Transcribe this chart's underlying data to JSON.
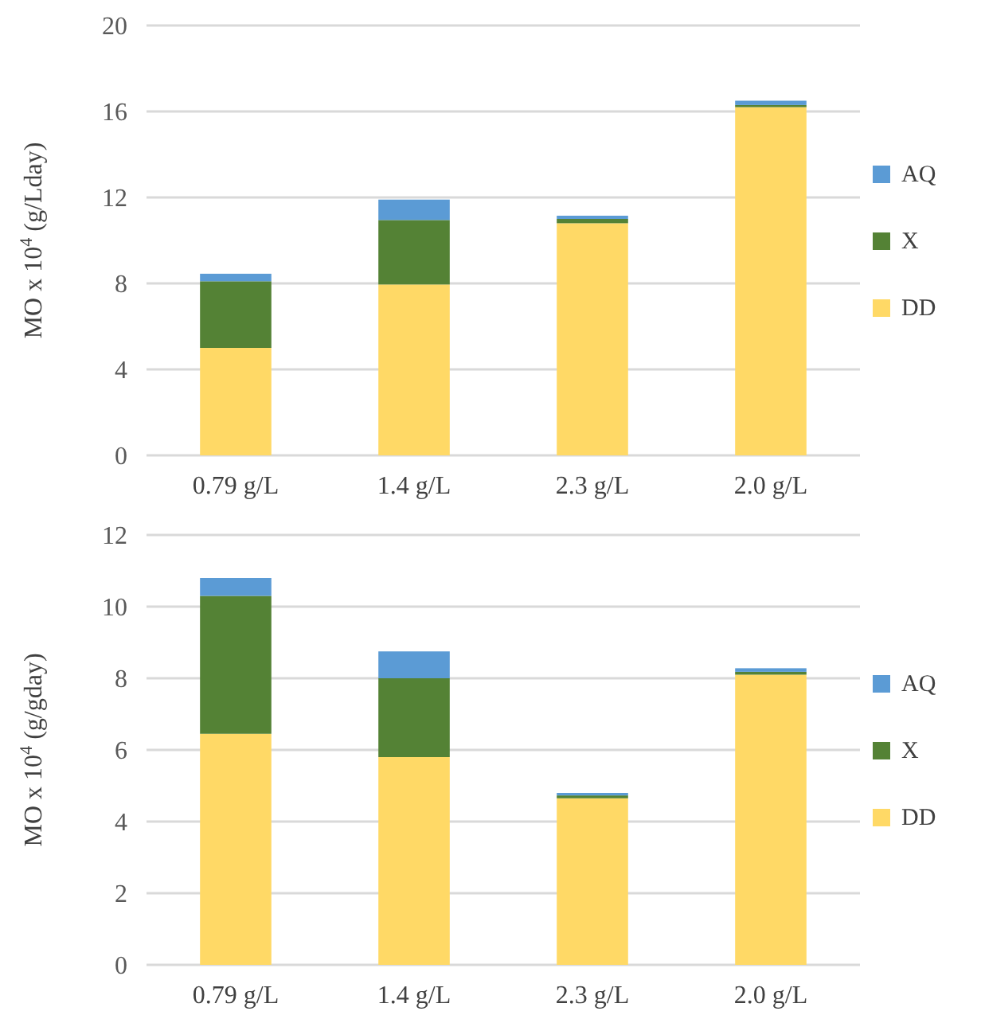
{
  "chart_data": [
    {
      "type": "bar",
      "stacked": true,
      "ylabel": "MO x 10$^{4}$ (g/Lday)",
      "categories": [
        "0.79 g/L",
        "1.4 g/L",
        "2.3 g/L",
        "2.0 g/L"
      ],
      "ylim": [
        0,
        20
      ],
      "yticks": [
        0,
        4,
        8,
        12,
        16,
        20
      ],
      "grid": "y",
      "legend": "right",
      "series": [
        {
          "name": "DD",
          "color": "#ffd966",
          "values": [
            5.0,
            7.95,
            10.8,
            16.2
          ]
        },
        {
          "name": "X",
          "color": "#548235",
          "values": [
            3.1,
            3.0,
            0.2,
            0.1
          ]
        },
        {
          "name": "AQ",
          "color": "#5b9bd5",
          "values": [
            0.35,
            0.95,
            0.15,
            0.2
          ]
        }
      ]
    },
    {
      "type": "bar",
      "stacked": true,
      "ylabel": "MO x 10$^{4}$ (g/gday)",
      "categories": [
        "0.79 g/L",
        "1.4 g/L",
        "2.3 g/L",
        "2.0 g/L"
      ],
      "ylim": [
        0,
        12
      ],
      "yticks": [
        0,
        2,
        4,
        6,
        8,
        10,
        12
      ],
      "grid": "y",
      "legend": "right",
      "series": [
        {
          "name": "DD",
          "color": "#ffd966",
          "values": [
            6.45,
            5.8,
            4.65,
            8.1
          ]
        },
        {
          "name": "X",
          "color": "#548235",
          "values": [
            3.85,
            2.2,
            0.08,
            0.08
          ]
        },
        {
          "name": "AQ",
          "color": "#5b9bd5",
          "values": [
            0.5,
            0.75,
            0.07,
            0.1
          ]
        }
      ]
    }
  ]
}
